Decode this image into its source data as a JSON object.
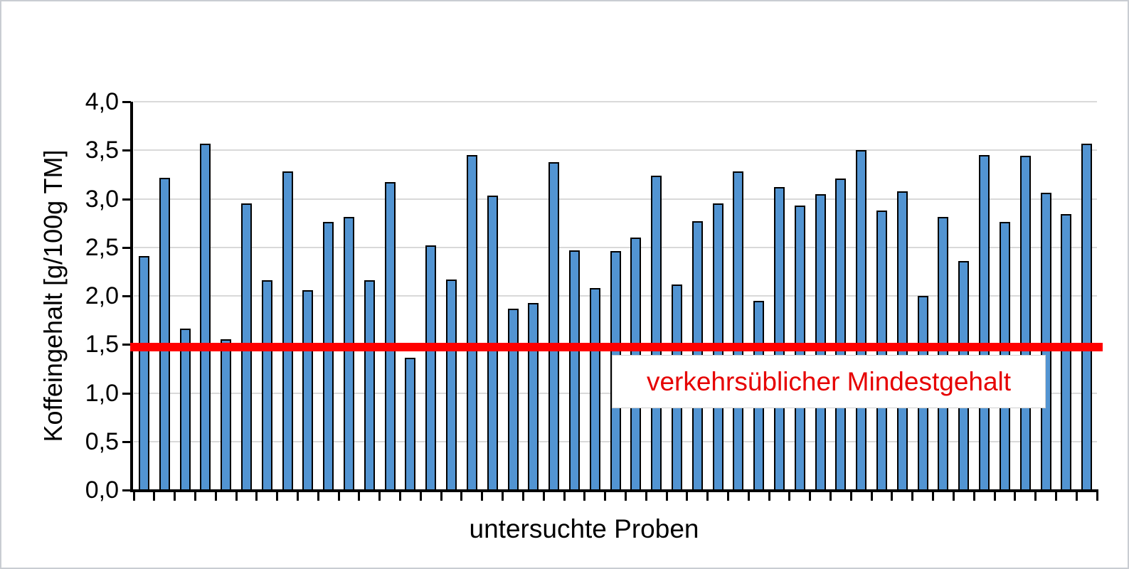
{
  "figure": {
    "background": "#ffffff",
    "border_color": "#c9cdd2"
  },
  "chart_data": {
    "type": "bar",
    "title": "",
    "xlabel": "untersuchte Proben",
    "ylabel": "Koffeingehalt [g/100g TM]",
    "ylim": [
      0.0,
      4.0
    ],
    "ytick_step": 0.5,
    "ytick_labels": [
      "0,0",
      "0,5",
      "1,0",
      "1,5",
      "2,0",
      "2,5",
      "3,0",
      "3,5",
      "4,0"
    ],
    "grid": true,
    "gridline_color": "#d9d9d9",
    "legend": "none",
    "n_bars": 47,
    "values": [
      2.41,
      3.22,
      1.66,
      3.57,
      1.55,
      2.95,
      2.16,
      3.28,
      2.06,
      2.76,
      2.81,
      2.16,
      3.17,
      1.36,
      2.52,
      2.17,
      3.45,
      3.03,
      1.87,
      1.93,
      3.38,
      2.47,
      2.08,
      2.46,
      2.6,
      3.24,
      2.12,
      2.77,
      2.95,
      3.28,
      1.95,
      3.12,
      2.93,
      3.05,
      3.21,
      3.5,
      2.88,
      3.08,
      2.0,
      2.81,
      2.36,
      3.45,
      2.76,
      3.44,
      3.06,
      2.84,
      3.57
    ],
    "bar_color": "#5294d2",
    "bar_border_color": "#000000",
    "axis_color": "#000000",
    "reference_line": {
      "value": 1.5,
      "label": "verkehrsüblicher Mindestgehalt",
      "line_color": "#ff0000",
      "label_color": "#e60000",
      "label_background": "#ffffff"
    }
  }
}
